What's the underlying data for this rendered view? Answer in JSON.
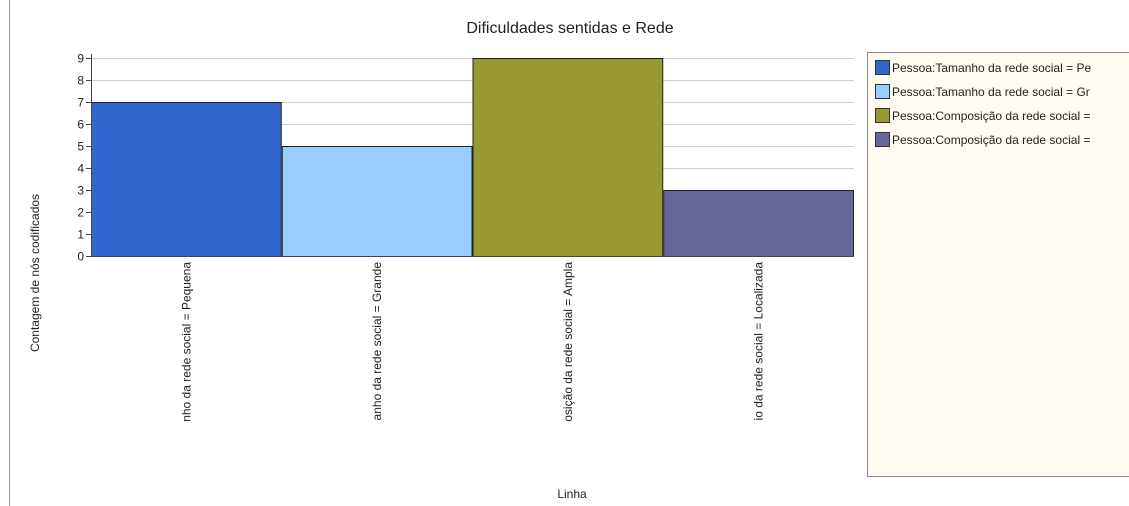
{
  "chart_data": {
    "type": "bar",
    "title": "Dificuldades sentidas e Rede",
    "xlabel": "Linha",
    "ylabel": "Contagem de nós codificados",
    "ylim": [
      0,
      9
    ],
    "yticks": [
      0,
      1,
      2,
      3,
      4,
      5,
      6,
      7,
      8,
      9
    ],
    "grid": true,
    "legend_position": "right",
    "categories": [
      "nho da rede social = Pequena",
      "anho da rede social = Grande",
      "osição da rede social = Ampla",
      "io da rede social = Localizada"
    ],
    "values": [
      7,
      5,
      9,
      3
    ],
    "colors": [
      "#3366cc",
      "#99ccff",
      "#999933",
      "#666699"
    ],
    "legend": [
      "Pessoa:Tamanho da rede social = Pe",
      "Pessoa:Tamanho da rede social = Gr",
      "Pessoa:Composição da rede social =",
      "Pessoa:Composição da rede social ="
    ]
  }
}
